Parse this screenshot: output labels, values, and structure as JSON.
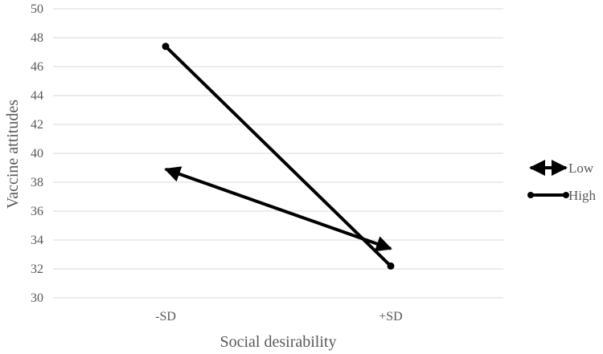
{
  "chart_data": {
    "type": "line",
    "categories": [
      "-SD",
      "+SD"
    ],
    "series": [
      {
        "name": "Low",
        "values": [
          38.9,
          33.4
        ],
        "marker": "arrow"
      },
      {
        "name": "High",
        "values": [
          47.4,
          32.2
        ],
        "marker": "dot"
      }
    ],
    "xlabel": "Social desirability",
    "ylabel": "Vaccine attitudes",
    "ylim": [
      30,
      50
    ],
    "ytick_step": 2,
    "grid": true,
    "legend": "right",
    "colors": {
      "series": "#000000",
      "grid": "#d9d9d9",
      "text": "#595959"
    }
  }
}
